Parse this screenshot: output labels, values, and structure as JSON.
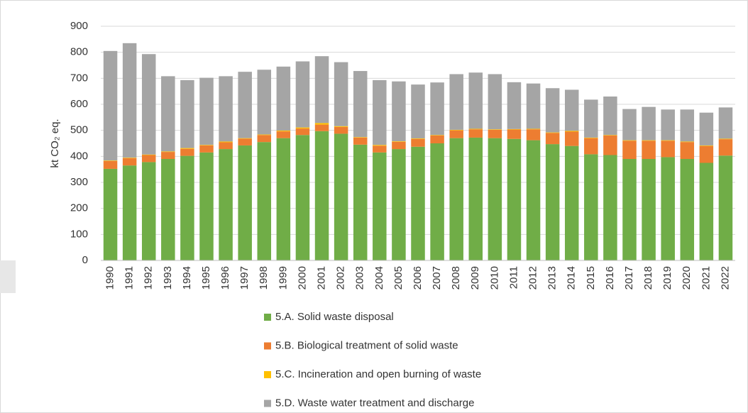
{
  "chart_data": {
    "type": "stacked_bar",
    "y_label": "kt CO₂ eq.",
    "categories": [
      "1990",
      "1991",
      "1992",
      "1993",
      "1994",
      "1995",
      "1996",
      "1997",
      "1998",
      "1999",
      "2000",
      "2001",
      "2002",
      "2003",
      "2004",
      "2005",
      "2006",
      "2007",
      "2008",
      "2009",
      "2010",
      "2011",
      "2012",
      "2013",
      "2014",
      "2015",
      "2016",
      "2017",
      "2018",
      "2019",
      "2020",
      "2021",
      "2022"
    ],
    "series": [
      {
        "name": "5.A.  Solid waste disposal",
        "color": "#70ad47",
        "values": [
          352,
          365,
          378,
          390,
          402,
          415,
          428,
          442,
          455,
          470,
          482,
          497,
          487,
          445,
          415,
          428,
          437,
          450,
          470,
          472,
          470,
          467,
          462,
          447,
          440,
          408,
          405,
          390,
          390,
          397,
          390,
          375,
          403
        ]
      },
      {
        "name": "5.B.  Biological treatment of solid waste",
        "color": "#ed7d31",
        "values": [
          30,
          28,
          27,
          27,
          27,
          27,
          26,
          26,
          27,
          26,
          25,
          25,
          26,
          27,
          26,
          28,
          30,
          30,
          30,
          32,
          32,
          36,
          42,
          43,
          55,
          62,
          75,
          70,
          70,
          63,
          65,
          65,
          63
        ]
      },
      {
        "name": "5.C.  Incineration and open burning of waste",
        "color": "#ffc000",
        "values": [
          2,
          2,
          2,
          2,
          3,
          2,
          3,
          2,
          2,
          3,
          4,
          6,
          3,
          2,
          3,
          2,
          2,
          2,
          2,
          2,
          2,
          2,
          2,
          2,
          3,
          2,
          2,
          2,
          2,
          2,
          2,
          2,
          2
        ]
      },
      {
        "name": "5.D.  Waste water treatment and discharge",
        "color": "#a5a5a5",
        "values": [
          421,
          440,
          386,
          289,
          261,
          258,
          251,
          255,
          249,
          246,
          254,
          257,
          246,
          254,
          249,
          230,
          207,
          202,
          214,
          216,
          212,
          180,
          174,
          170,
          158,
          146,
          148,
          120,
          128,
          118,
          123,
          126,
          120
        ]
      }
    ],
    "ylim": [
      0,
      900
    ],
    "yticks": [
      0,
      100,
      200,
      300,
      400,
      500,
      600,
      700,
      800,
      900
    ],
    "grid": true
  }
}
